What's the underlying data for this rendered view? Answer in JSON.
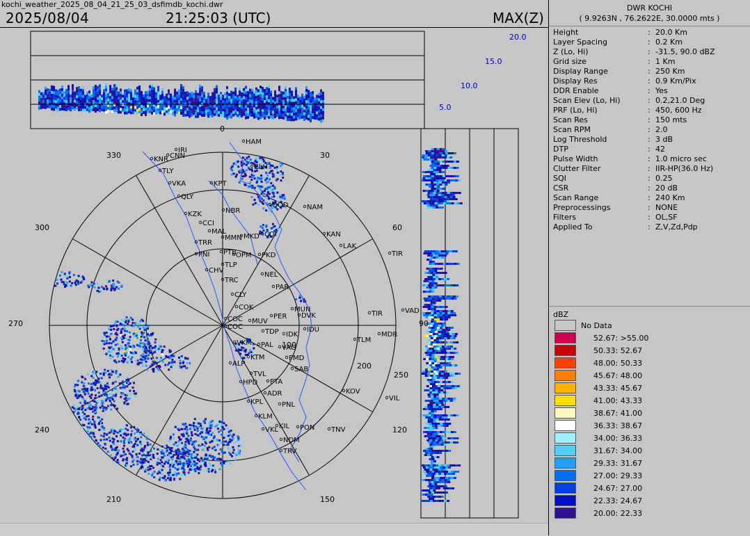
{
  "header": {
    "filename": "kochi_weather_2025_08_04_21_25_03_dsfimdb_kochi.dwr",
    "date": "2025/08/04",
    "time": "21:25:03 (UTC)",
    "product": "MAX(Z)"
  },
  "station": {
    "name": "DWR KOCHI",
    "coords": "( 9.9263N , 76.2622E, 30.0000 mts )"
  },
  "params": [
    {
      "label": "Height",
      "value": "20.0 Km"
    },
    {
      "label": "Layer Spacing",
      "value": "0.2 Km"
    },
    {
      "label": "Z (Lo, Hi)",
      "value": "-31.5, 90.0 dBZ"
    },
    {
      "label": "Grid size",
      "value": "1 Km"
    },
    {
      "label": "Display Range",
      "value": "250 Km"
    },
    {
      "label": "Display Res",
      "value": "0.9 Km/Pix"
    },
    {
      "label": "DDR Enable",
      "value": "Yes"
    },
    {
      "label": "Scan Elev (Lo, Hi)",
      "value": "0.2,21.0 Deg"
    },
    {
      "label": "PRF (Lo, Hi)",
      "value": "450, 600 Hz"
    },
    {
      "label": "Scan Res",
      "value": "150 mts"
    },
    {
      "label": "Scan RPM",
      "value": "2.0"
    },
    {
      "label": "Log Threshold",
      "value": "3 dB"
    },
    {
      "label": "DTP",
      "value": "42"
    },
    {
      "label": "Pulse Width",
      "value": "1.0 micro sec"
    },
    {
      "label": "Clutter Filter",
      "value": "IIR-HP(36.0 Hz)"
    },
    {
      "label": "SQI",
      "value": "0.25"
    },
    {
      "label": "CSR",
      "value": "20 dB"
    },
    {
      "label": "Scan Range",
      "value": "240 Km"
    },
    {
      "label": "Preprocessings",
      "value": "NONE"
    },
    {
      "label": "Filters",
      "value": "OL,SF"
    },
    {
      "label": "Applied To",
      "value": "Z,V,Zd,Pdp"
    }
  ],
  "legend": {
    "title": "dBZ",
    "no_data": "No Data",
    "items": [
      {
        "label": "52.67: >55.00",
        "color": "#cc0050"
      },
      {
        "label": "50.33: 52.67",
        "color": "#cc0000"
      },
      {
        "label": "48.00: 50.33",
        "color": "#ff4000"
      },
      {
        "label": "45.67: 48.00",
        "color": "#ff7f00"
      },
      {
        "label": "43.33: 45.67",
        "color": "#ffb200"
      },
      {
        "label": "41.00: 43.33",
        "color": "#ffe000"
      },
      {
        "label": "38.67: 41.00",
        "color": "#fff6c0"
      },
      {
        "label": "36.33: 38.67",
        "color": "#ffffff"
      },
      {
        "label": "34.00: 36.33",
        "color": "#a0f0ff"
      },
      {
        "label": "31.67: 34.00",
        "color": "#50d0ff"
      },
      {
        "label": "29.33: 31.67",
        "color": "#20a0ff"
      },
      {
        "label": "27.00: 29.33",
        "color": "#0070f0"
      },
      {
        "label": "24.67: 27.00",
        "color": "#0040e0"
      },
      {
        "label": "22.33: 24.67",
        "color": "#0010c0"
      },
      {
        "label": "20.00: 22.33",
        "color": "#301090"
      }
    ]
  },
  "height_scale": [
    "20.0",
    "15.0",
    "10.0",
    "5.0"
  ],
  "azimuth_labels": [
    "0",
    "30",
    "60",
    "90",
    "120",
    "150",
    "210",
    "240",
    "270",
    "300",
    "330"
  ],
  "range_labels": [
    "100",
    "200",
    "250"
  ],
  "places": [
    "HAM",
    "IRI",
    "KNR",
    "CNN",
    "TLY",
    "VKA",
    "KPT",
    "CLH",
    "QLY",
    "KZK",
    "OOD",
    "NAM",
    "NBR",
    "CCI",
    "MAL",
    "COI",
    "KAN",
    "MKD",
    "LAK",
    "TRR",
    "MMN",
    "PNI",
    "PTB",
    "OPM",
    "PKD",
    "TIR",
    "CHV",
    "TLP",
    "NEL",
    "TRC",
    "PAR",
    "CLY",
    "COK",
    "MUN",
    "TIR",
    "VAD",
    "MUV",
    "PER",
    "DVK",
    "COC",
    "COC",
    "TDP",
    "IDU",
    "MDR",
    "IDK",
    "TLM",
    "VKM",
    "PAL",
    "VAG",
    "KTM",
    "PMD",
    "ALP",
    "TVL",
    "SAB",
    "HPD",
    "PTA",
    "ADR",
    "KOV",
    "KPL",
    "PNL",
    "VIL",
    "KLM",
    "KIL",
    "PON",
    "TNV",
    "VKL",
    "NDM",
    "TRV"
  ]
}
